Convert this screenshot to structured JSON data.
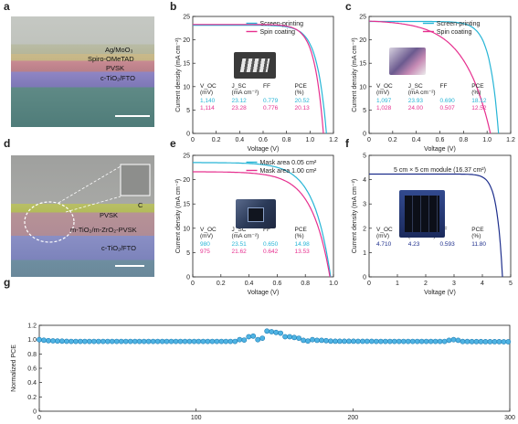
{
  "panels": {
    "a": "a",
    "b": "b",
    "c": "c",
    "d": "d",
    "e": "e",
    "f": "f",
    "g": "g"
  },
  "sem_a": {
    "layers": [
      "Ag/MoO₃",
      "Spiro-OMeTAD",
      "PVSK",
      "c-TiO₂/FTO"
    ]
  },
  "sem_d": {
    "layers": [
      "C",
      "PVSK",
      "m-TiO₂/m-ZrO₂-PVSK",
      "c-TiO₂/FTO"
    ]
  },
  "colors": {
    "cyan": "#27b5d6",
    "magenta": "#e6308f",
    "navy": "#1d2e8c",
    "scatter": "#4fb3e3",
    "scatter_edge": "#1f7fb5"
  },
  "chart_data": [
    {
      "id": "b",
      "type": "line",
      "xlabel": "Voltage (V)",
      "ylabel": "Current density (mA cm⁻²)",
      "xlim": [
        0,
        1.2
      ],
      "ylim": [
        0,
        25
      ],
      "xticks": [
        "0",
        "0.2",
        "0.4",
        "0.6",
        "0.8",
        "1.0",
        "1.2"
      ],
      "yticks": [
        "0",
        "5",
        "10",
        "15",
        "20",
        "25"
      ],
      "legend_position": "top-right",
      "series": [
        {
          "name": "Screen-printing",
          "color": "#27b5d6",
          "voc": 1.14,
          "jsc": 23.12,
          "knee": 0.08
        },
        {
          "name": "Spin coating",
          "color": "#e6308f",
          "voc": 1.114,
          "jsc": 23.28,
          "knee": 0.075
        }
      ],
      "table": {
        "headers": [
          "V_OC (mV)",
          "J_SC (mA cm⁻²)",
          "FF",
          "PCE (%)"
        ],
        "rows": [
          [
            "1,140",
            "23.12",
            "0.779",
            "20.52"
          ],
          [
            "1,114",
            "23.28",
            "0.776",
            "20.13"
          ]
        ]
      }
    },
    {
      "id": "c",
      "type": "line",
      "xlabel": "Voltage (V)",
      "ylabel": "Current density (mA cm⁻²)",
      "xlim": [
        0,
        1.2
      ],
      "ylim": [
        0,
        25
      ],
      "xticks": [
        "0",
        "0.2",
        "0.4",
        "0.6",
        "0.8",
        "1.0",
        "1.2"
      ],
      "yticks": [
        "0",
        "5",
        "10",
        "15",
        "20",
        "25"
      ],
      "legend_position": "top-right",
      "series": [
        {
          "name": "Screen-printing",
          "color": "#27b5d6",
          "voc": 1.097,
          "jsc": 23.93,
          "knee": 0.075
        },
        {
          "name": "Spin coating",
          "color": "#e6308f",
          "voc": 1.028,
          "jsc": 24.0,
          "knee": 0.22
        }
      ],
      "table": {
        "headers": [
          "V_OC (mV)",
          "J_SC (mA cm⁻²)",
          "FF",
          "PCE (%)"
        ],
        "rows": [
          [
            "1,097",
            "23.93",
            "0.690",
            "18.12"
          ],
          [
            "1,028",
            "24.00",
            "0.507",
            "12.52"
          ]
        ]
      }
    },
    {
      "id": "e",
      "type": "line",
      "xlabel": "Voltage (V)",
      "ylabel": "Current density (mA cm⁻²)",
      "xlim": [
        0,
        1.0
      ],
      "ylim": [
        0,
        25
      ],
      "xticks": [
        "0",
        "0.2",
        "0.4",
        "0.6",
        "0.8",
        "1.0"
      ],
      "yticks": [
        "0",
        "5",
        "10",
        "15",
        "20",
        "25"
      ],
      "legend_position": "top-right",
      "series": [
        {
          "name": "Mask area 0.05 cm²",
          "color": "#27b5d6",
          "voc": 0.98,
          "jsc": 23.51,
          "knee": 0.12
        },
        {
          "name": "Mask area 1.00 cm²",
          "color": "#e6308f",
          "voc": 0.975,
          "jsc": 21.62,
          "knee": 0.13
        }
      ],
      "table": {
        "headers": [
          "V_OC (mV)",
          "J_SC (mA cm⁻²)",
          "FF",
          "PCE (%)"
        ],
        "rows": [
          [
            "980",
            "23.51",
            "0.650",
            "14.98"
          ],
          [
            "975",
            "21.62",
            "0.642",
            "13.53"
          ]
        ]
      }
    },
    {
      "id": "f",
      "type": "line",
      "title": "5 cm × 5 cm module (16.37 cm²)",
      "xlabel": "Voltage (V)",
      "ylabel": "Current density (mA cm⁻²)",
      "xlim": [
        0,
        5
      ],
      "ylim": [
        0,
        5
      ],
      "xticks": [
        "0",
        "1",
        "2",
        "3",
        "4",
        "5"
      ],
      "yticks": [
        "0",
        "1",
        "2",
        "3",
        "4",
        "5"
      ],
      "series": [
        {
          "name": "",
          "color": "#1d2e8c",
          "voc": 4.71,
          "jsc": 4.23,
          "knee": 0.2
        }
      ],
      "table": {
        "headers": [
          "V_OC (mV)",
          "J_SC (mA cm⁻²)",
          "FF",
          "PCE (%)"
        ],
        "rows": [
          [
            "4.710",
            "4.23",
            "0.593",
            "11.80"
          ]
        ]
      }
    },
    {
      "id": "g",
      "type": "scatter",
      "ylabel": "Normalized PCE",
      "xlim": [
        0,
        310
      ],
      "ylim": [
        0,
        1.2
      ],
      "xticks": [
        "0",
        "100",
        "200",
        "300"
      ],
      "yticks": [
        "0",
        "0.2",
        "0.4",
        "0.6",
        "0.8",
        "1.0",
        "1.2"
      ],
      "x_step": 3,
      "baseline": [
        [
          0,
          1.0
        ],
        [
          6,
          0.985
        ],
        [
          20,
          0.975
        ],
        [
          140,
          0.975
        ],
        [
          180,
          0.98
        ],
        [
          230,
          0.975
        ],
        [
          270,
          0.975
        ],
        [
          310,
          0.97
        ]
      ],
      "anomalies": [
        [
          132,
          1.0
        ],
        [
          135,
          0.995
        ],
        [
          138,
          1.04
        ],
        [
          141,
          1.05
        ],
        [
          144,
          1.0
        ],
        [
          147,
          1.02
        ],
        [
          150,
          1.12
        ],
        [
          153,
          1.11
        ],
        [
          156,
          1.1
        ],
        [
          159,
          1.09
        ],
        [
          162,
          1.04
        ],
        [
          165,
          1.04
        ],
        [
          168,
          1.03
        ],
        [
          171,
          1.02
        ],
        [
          174,
          0.99
        ],
        [
          177,
          0.98
        ],
        [
          180,
          1.0
        ],
        [
          183,
          0.99
        ],
        [
          186,
          0.99
        ],
        [
          189,
          0.985
        ],
        [
          270,
          0.99
        ],
        [
          273,
          1.0
        ],
        [
          276,
          0.99
        ]
      ]
    }
  ]
}
